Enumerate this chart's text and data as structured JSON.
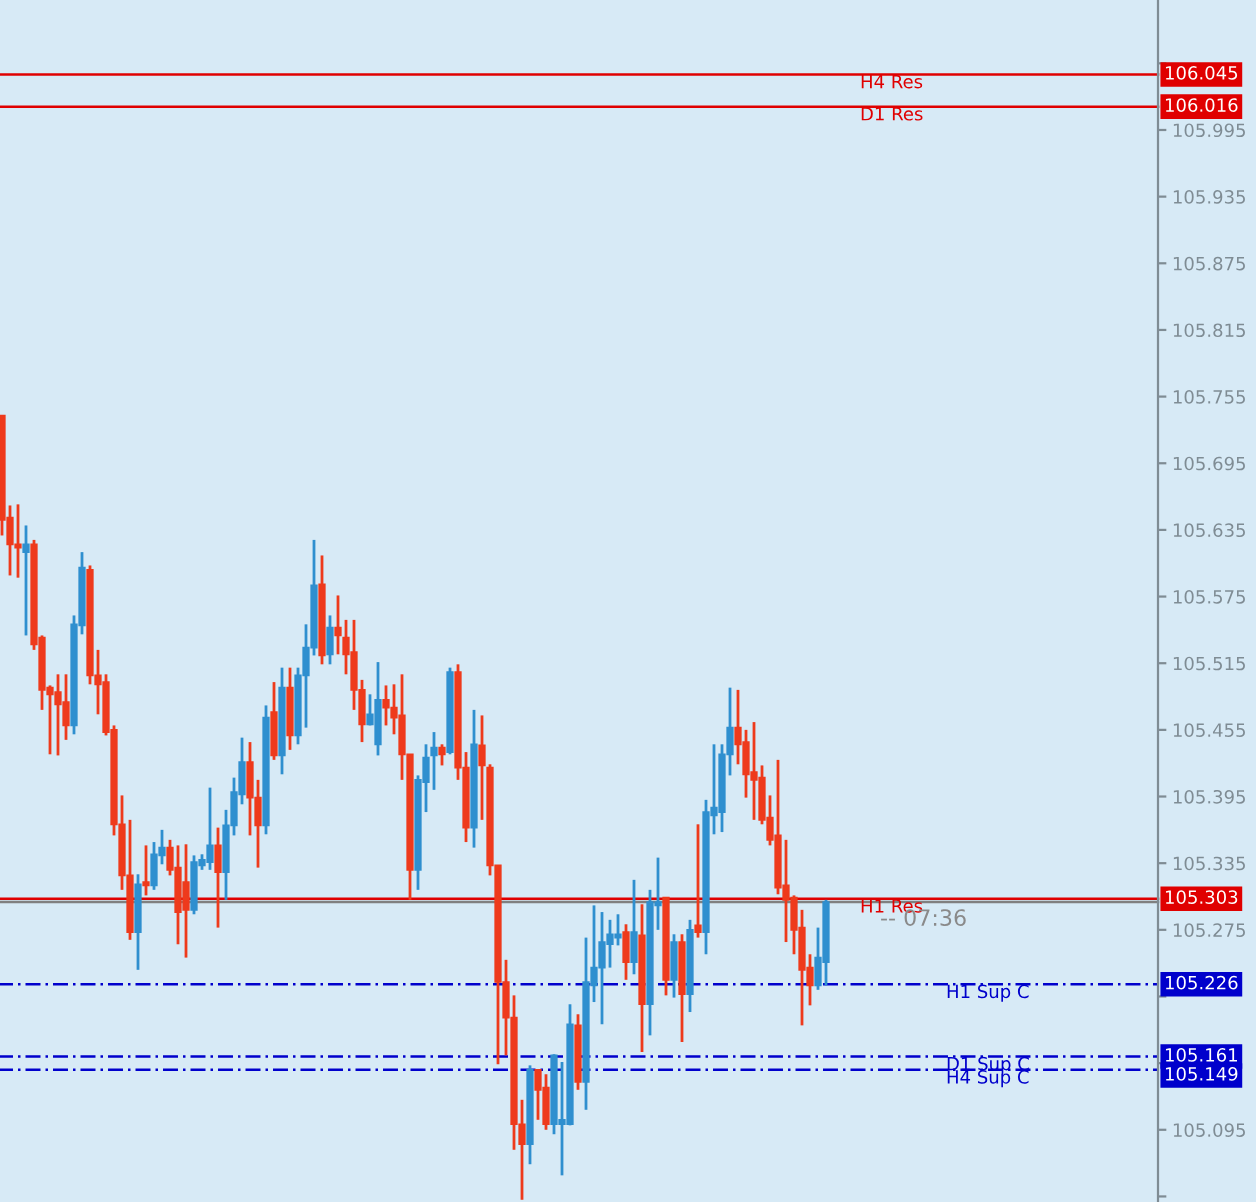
{
  "chart_data": {
    "type": "candlestick",
    "categories": [
      null,
      null,
      null,
      null,
      null,
      null,
      null,
      null,
      null,
      null,
      null,
      null,
      null,
      null,
      null,
      null,
      null,
      null,
      null,
      null,
      null,
      null,
      null,
      null,
      null,
      null,
      null,
      null,
      null,
      null,
      null,
      null,
      null,
      null,
      null,
      null,
      null,
      null,
      null,
      null,
      null,
      null,
      null,
      null,
      null,
      null,
      null,
      null,
      null,
      null,
      null,
      null,
      null,
      null,
      null,
      null,
      null,
      null,
      null,
      null,
      null,
      null,
      null,
      null,
      null,
      null,
      null,
      null,
      null,
      null,
      null,
      null,
      null,
      null,
      null,
      null,
      null,
      null,
      null,
      null,
      null,
      null,
      null,
      null,
      null,
      null,
      null,
      null,
      null,
      null,
      null,
      null,
      null,
      null,
      null,
      null,
      null,
      null,
      null,
      null,
      null,
      null,
      null,
      null,
      null,
      null,
      null,
      null,
      null,
      null,
      null,
      null,
      null,
      null,
      null,
      null,
      null,
      null,
      null,
      null,
      null,
      null,
      null,
      null,
      null,
      null,
      null,
      null,
      null,
      null,
      null,
      null,
      null,
      null,
      null,
      null,
      null,
      null,
      null,
      null,
      null,
      null,
      null,
      null,
      null
    ],
    "ohlc": [
      [
        105.738,
        105.738,
        105.63,
        105.644
      ],
      [
        105.646,
        105.657,
        105.594,
        105.622
      ],
      [
        105.622,
        105.658,
        105.592,
        105.619
      ],
      [
        105.615,
        105.639,
        105.54,
        105.622
      ],
      [
        105.622,
        105.626,
        105.527,
        105.532
      ],
      [
        105.538,
        105.54,
        105.473,
        105.491
      ],
      [
        105.493,
        105.495,
        105.433,
        105.487
      ],
      [
        105.489,
        105.505,
        105.432,
        105.478
      ],
      [
        105.48,
        105.505,
        105.446,
        105.459
      ],
      [
        105.459,
        105.558,
        105.451,
        105.55
      ],
      [
        105.549,
        105.615,
        105.541,
        105.601
      ],
      [
        105.599,
        105.603,
        105.496,
        105.504
      ],
      [
        105.504,
        105.527,
        105.469,
        105.496
      ],
      [
        105.498,
        105.505,
        105.45,
        105.453
      ],
      [
        105.455,
        105.459,
        105.36,
        105.37
      ],
      [
        105.37,
        105.396,
        105.311,
        105.324
      ],
      [
        105.324,
        105.374,
        105.266,
        105.273
      ],
      [
        105.273,
        105.325,
        105.239,
        105.316
      ],
      [
        105.318,
        105.351,
        105.306,
        105.315
      ],
      [
        105.315,
        105.354,
        105.311,
        105.343
      ],
      [
        105.342,
        105.365,
        105.334,
        105.349
      ],
      [
        105.349,
        105.356,
        105.324,
        105.329
      ],
      [
        105.331,
        105.351,
        105.262,
        105.291
      ],
      [
        105.318,
        105.352,
        105.25,
        105.293
      ],
      [
        105.293,
        105.342,
        105.289,
        105.336
      ],
      [
        105.333,
        105.343,
        105.329,
        105.338
      ],
      [
        105.336,
        105.403,
        105.329,
        105.351
      ],
      [
        105.351,
        105.367,
        105.277,
        105.327
      ],
      [
        105.327,
        105.383,
        105.302,
        105.369
      ],
      [
        105.369,
        105.412,
        105.36,
        105.399
      ],
      [
        105.397,
        105.448,
        105.388,
        105.426
      ],
      [
        105.426,
        105.444,
        105.36,
        105.394
      ],
      [
        105.394,
        105.41,
        105.331,
        105.369
      ],
      [
        105.369,
        105.477,
        105.361,
        105.466
      ],
      [
        105.471,
        105.498,
        105.428,
        105.432
      ],
      [
        105.432,
        105.511,
        105.415,
        105.493
      ],
      [
        105.493,
        105.511,
        105.437,
        105.45
      ],
      [
        105.45,
        105.511,
        105.442,
        105.504
      ],
      [
        105.504,
        105.55,
        105.457,
        105.529
      ],
      [
        105.529,
        105.626,
        105.522,
        105.585
      ],
      [
        105.586,
        105.612,
        105.514,
        105.522
      ],
      [
        105.523,
        105.558,
        105.514,
        105.547
      ],
      [
        105.547,
        105.576,
        105.523,
        105.54
      ],
      [
        105.538,
        105.554,
        105.505,
        105.523
      ],
      [
        105.525,
        105.554,
        105.473,
        105.491
      ],
      [
        105.491,
        105.5,
        105.444,
        105.46
      ],
      [
        105.46,
        105.487,
        105.459,
        105.469
      ],
      [
        105.442,
        105.516,
        105.432,
        105.482
      ],
      [
        105.482,
        105.495,
        105.459,
        105.475
      ],
      [
        105.475,
        105.496,
        105.451,
        105.466
      ],
      [
        105.468,
        105.505,
        105.41,
        105.433
      ],
      [
        105.433,
        105.433,
        105.302,
        105.329
      ],
      [
        105.329,
        105.414,
        105.311,
        105.41
      ],
      [
        105.408,
        105.442,
        105.381,
        105.43
      ],
      [
        105.432,
        105.453,
        105.401,
        105.439
      ],
      [
        105.439,
        105.442,
        105.423,
        105.433
      ],
      [
        105.435,
        105.511,
        105.433,
        105.507
      ],
      [
        105.507,
        105.514,
        105.41,
        105.421
      ],
      [
        105.421,
        105.435,
        105.354,
        105.367
      ],
      [
        105.367,
        105.473,
        105.349,
        105.442
      ],
      [
        105.441,
        105.468,
        105.374,
        105.423
      ],
      [
        105.421,
        105.424,
        105.324,
        105.333
      ],
      [
        105.333,
        105.333,
        105.154,
        105.228
      ],
      [
        105.228,
        105.248,
        105.162,
        105.196
      ],
      [
        105.196,
        105.216,
        105.077,
        105.1
      ],
      [
        105.1,
        105.122,
        105.032,
        105.082
      ],
      [
        105.082,
        105.153,
        105.064,
        105.149
      ],
      [
        105.149,
        105.149,
        105.104,
        105.131
      ],
      [
        105.133,
        105.145,
        105.095,
        105.1
      ],
      [
        105.1,
        105.163,
        105.091,
        105.162
      ],
      [
        105.1,
        105.156,
        105.054,
        105.104
      ],
      [
        105.1,
        105.208,
        105.099,
        105.19
      ],
      [
        105.189,
        105.199,
        105.131,
        105.138
      ],
      [
        105.138,
        105.268,
        105.113,
        105.228
      ],
      [
        105.225,
        105.297,
        105.21,
        105.241
      ],
      [
        105.241,
        105.291,
        105.19,
        105.264
      ],
      [
        105.262,
        105.284,
        105.241,
        105.271
      ],
      [
        105.268,
        105.289,
        105.261,
        105.271
      ],
      [
        105.273,
        105.28,
        105.23,
        105.246
      ],
      [
        105.246,
        105.32,
        105.235,
        105.273
      ],
      [
        105.27,
        105.298,
        105.165,
        105.208
      ],
      [
        105.208,
        105.311,
        105.18,
        105.3
      ],
      [
        105.297,
        105.34,
        105.275,
        105.3
      ],
      [
        105.304,
        105.304,
        105.216,
        105.23
      ],
      [
        105.23,
        105.271,
        105.214,
        105.264
      ],
      [
        105.264,
        105.271,
        105.174,
        105.217
      ],
      [
        105.217,
        105.284,
        105.201,
        105.275
      ],
      [
        105.279,
        105.37,
        105.268,
        105.273
      ],
      [
        105.273,
        105.392,
        105.253,
        105.381
      ],
      [
        105.378,
        105.442,
        105.361,
        105.385
      ],
      [
        105.381,
        105.442,
        105.363,
        105.433
      ],
      [
        105.433,
        105.493,
        105.414,
        105.457
      ],
      [
        105.457,
        105.491,
        105.424,
        105.442
      ],
      [
        105.444,
        105.455,
        105.394,
        105.415
      ],
      [
        105.417,
        105.462,
        105.374,
        105.41
      ],
      [
        105.412,
        105.423,
        105.37,
        105.374
      ],
      [
        105.376,
        105.396,
        105.351,
        105.356
      ],
      [
        105.36,
        105.428,
        105.307,
        105.313
      ],
      [
        105.315,
        105.356,
        105.264,
        105.302
      ],
      [
        105.304,
        105.306,
        105.253,
        105.275
      ],
      [
        105.277,
        105.293,
        105.189,
        105.239
      ],
      [
        105.241,
        105.253,
        105.207,
        105.225
      ],
      [
        105.225,
        105.277,
        105.221,
        105.25
      ],
      [
        105.246,
        105.302,
        105.225,
        105.3
      ],
      null,
      null,
      null,
      null,
      null,
      null,
      null,
      null,
      null,
      null,
      null,
      null,
      null,
      null,
      null,
      null,
      null,
      null,
      null,
      null,
      null,
      null,
      null,
      null,
      null,
      null,
      null,
      null,
      null,
      null,
      null,
      null,
      null,
      null,
      null,
      null,
      null,
      null,
      null,
      null,
      null
    ],
    "colors": [
      "#ee3a1c",
      "#ee3a1c",
      "#ee3a1c",
      "#2f8fcf",
      "#ee3a1c",
      "#ee3a1c",
      "#ee3a1c",
      "#ee3a1c",
      "#ee3a1c",
      "#2f8fcf",
      "#2f8fcf",
      "#ee3a1c",
      "#ee3a1c",
      "#ee3a1c",
      "#ee3a1c",
      "#ee3a1c",
      "#ee3a1c",
      "#2f8fcf",
      "#ee3a1c",
      "#2f8fcf",
      "#2f8fcf",
      "#ee3a1c",
      "#ee3a1c",
      "#ee3a1c",
      "#2f8fcf",
      "#2f8fcf",
      "#2f8fcf",
      "#ee3a1c",
      "#2f8fcf",
      "#2f8fcf",
      "#2f8fcf",
      "#ee3a1c",
      "#ee3a1c",
      "#2f8fcf",
      "#ee3a1c",
      "#2f8fcf",
      "#ee3a1c",
      "#2f8fcf",
      "#2f8fcf",
      "#2f8fcf",
      "#ee3a1c",
      "#2f8fcf",
      "#ee3a1c",
      "#ee3a1c",
      "#ee3a1c",
      "#ee3a1c",
      "#2f8fcf",
      "#2f8fcf",
      "#ee3a1c",
      "#ee3a1c",
      "#ee3a1c",
      "#ee3a1c",
      "#2f8fcf",
      "#2f8fcf",
      "#2f8fcf",
      "#ee3a1c",
      "#2f8fcf",
      "#ee3a1c",
      "#ee3a1c",
      "#2f8fcf",
      "#ee3a1c",
      "#ee3a1c",
      "#ee3a1c",
      "#ee3a1c",
      "#ee3a1c",
      "#ee3a1c",
      "#2f8fcf",
      "#ee3a1c",
      "#ee3a1c",
      "#2f8fcf",
      "#2f8fcf",
      "#2f8fcf",
      "#ee3a1c",
      "#2f8fcf",
      "#2f8fcf",
      "#2f8fcf",
      "#2f8fcf",
      "#2f8fcf",
      "#ee3a1c",
      "#2f8fcf",
      "#ee3a1c",
      "#2f8fcf",
      "#2f8fcf",
      "#ee3a1c",
      "#2f8fcf",
      "#ee3a1c",
      "#2f8fcf",
      "#ee3a1c",
      "#2f8fcf",
      "#2f8fcf",
      "#2f8fcf",
      "#2f8fcf",
      "#ee3a1c",
      "#ee3a1c",
      "#ee3a1c",
      "#ee3a1c",
      "#ee3a1c",
      "#ee3a1c",
      "#ee3a1c",
      "#ee3a1c",
      "#ee3a1c",
      "#ee3a1c",
      "#2f8fcf",
      "#2f8fcf",
      null,
      null,
      null,
      null,
      null,
      null,
      null,
      null,
      null,
      null,
      null,
      null,
      null,
      null,
      null,
      null,
      null,
      null,
      null,
      null,
      null,
      null,
      null,
      null,
      null,
      null,
      null,
      null,
      null,
      null,
      null,
      null,
      null,
      null,
      null,
      null,
      null,
      null,
      null,
      null,
      null
    ],
    "ylim": [
      105.03,
      106.112
    ],
    "yticks": [
      {
        "value": 105.035,
        "label": null
      },
      105.095,
      {
        "value": 105.155,
        "label": null
      },
      {
        "value": 105.215,
        "label": null
      },
      105.275,
      105.335,
      105.395,
      105.455,
      105.515,
      105.575,
      105.635,
      105.695,
      105.755,
      105.815,
      105.875,
      105.935,
      105.995,
      {
        "value": 106.055,
        "label": null
      }
    ],
    "tick_labels": "y",
    "grid": false,
    "ref_lines": [
      {
        "axis": "y",
        "value": 106.045,
        "label": "H4 Res",
        "color": "#e00000",
        "line_style": "solid"
      },
      {
        "axis": "y",
        "value": 106.016,
        "label": "D1 Res",
        "color": "#e00000",
        "line_style": "solid"
      },
      {
        "axis": "y",
        "value": 105.3,
        "color": "#808080",
        "line_style": "solid"
      },
      {
        "axis": "y",
        "value": 105.303,
        "label": "H1 Res",
        "color": "#e00000",
        "line_style": "solid"
      },
      {
        "axis": "y",
        "value": 105.226,
        "label": "H1 Sup C",
        "color": "#0000cc",
        "line_style": "dashdot"
      },
      {
        "axis": "y",
        "value": 105.161,
        "label": "D1 Sup C",
        "color": "#0000cc",
        "line_style": "dashdot"
      },
      {
        "axis": "y",
        "value": 105.149,
        "label": "H4 Sup C",
        "color": "#0000cc",
        "line_style": "dashdot"
      }
    ],
    "annotations": [
      "-- 07:36",
      "106.045",
      "106.016",
      "105.303",
      "105.226",
      "105.161",
      "105.149"
    ]
  }
}
